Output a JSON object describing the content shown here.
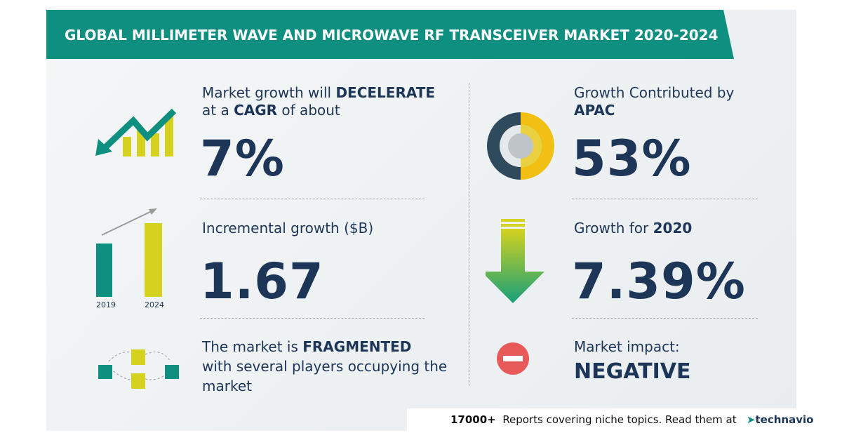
{
  "header": {
    "title": "GLOBAL MILLIMETER WAVE AND MICROWAVE RF TRANSCEIVER MARKET 2020-2024"
  },
  "left": {
    "growth": {
      "line1": [
        "Market growth will",
        "DECELERATE"
      ],
      "line2": [
        "at a",
        "CAGR",
        "of about"
      ],
      "value": "7%"
    },
    "incremental": {
      "label": "Incremental growth ($B)",
      "value": "1.67",
      "years": [
        "2019",
        "2024"
      ]
    },
    "structure": {
      "line1": [
        "The market is",
        "FRAGMENTED"
      ],
      "line2": "with several players occupying the",
      "line3": "market"
    }
  },
  "right": {
    "region": {
      "label": "Growth Contributed by",
      "name": "APAC",
      "value": "53%"
    },
    "yoy": {
      "label": "Growth for",
      "year": "2020",
      "value": "7.39%"
    },
    "impact": {
      "label": "Market impact:",
      "value": "NEGATIVE"
    }
  },
  "footer": {
    "count": "17000+",
    "text": "Reports covering niche topics. Read them at",
    "brand": "technavio"
  }
}
